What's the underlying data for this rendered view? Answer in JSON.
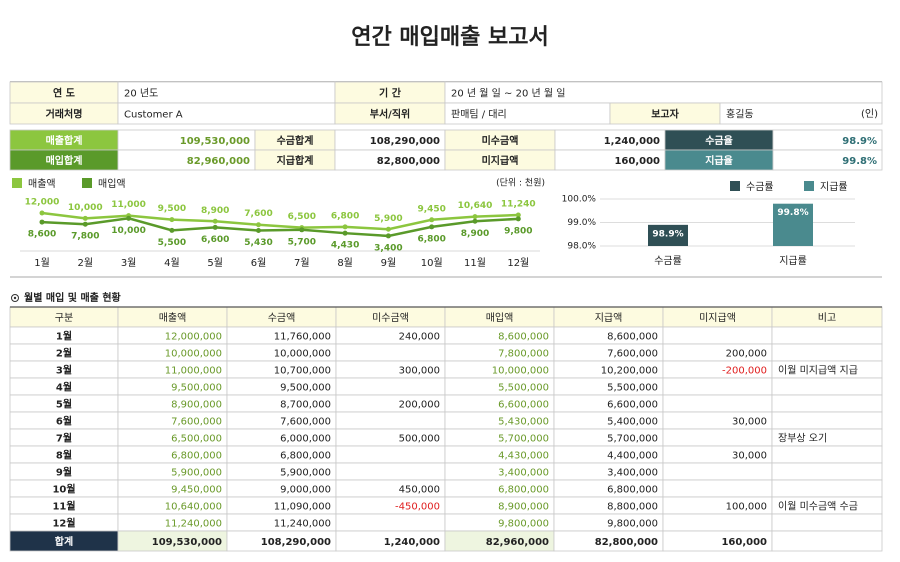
{
  "title": "연간 매입매출 보고서",
  "info": {
    "rows": [
      [
        "연 도",
        "20 년도",
        "기 간",
        "20 년 월 일 ~ 20 년 월 일"
      ],
      [
        "거래처명",
        "Customer A",
        "부서/직위",
        "판매팀 / 대리",
        "보고자",
        "홍길동",
        "(인)"
      ]
    ]
  },
  "summary": {
    "rows": [
      [
        "매출합계",
        "109,530,000",
        "수금합계",
        "108,290,000",
        "미수금액",
        "1,240,000",
        "수금율",
        "98.9%"
      ],
      [
        "매입합계",
        "82,960,000",
        "지급합계",
        "82,800,000",
        "미지급액",
        "160,000",
        "지급율",
        "99.8%"
      ]
    ]
  },
  "line_chart": {
    "type": "line",
    "unit": "(단위 : 천원)",
    "categories": [
      "1월",
      "2월",
      "3월",
      "4월",
      "5월",
      "6월",
      "7월",
      "8월",
      "9월",
      "10월",
      "11월",
      "12월"
    ],
    "series": [
      {
        "name": "매출액",
        "color": "#8cc63f",
        "values": [
          12000,
          10000,
          11000,
          9500,
          8900,
          7600,
          6500,
          6800,
          5900,
          9450,
          10640,
          11240
        ],
        "value_labels": [
          "12,000",
          "10,000",
          "11,000",
          "9,500",
          "8,900",
          "7,600",
          "6,500",
          "6,800",
          "5,900",
          "9,450",
          "10,640",
          "11,240"
        ]
      },
      {
        "name": "매입액",
        "color": "#5a9a2a",
        "values": [
          8600,
          7800,
          10000,
          5500,
          6600,
          5430,
          5700,
          4430,
          3400,
          6800,
          8900,
          9800
        ],
        "value_labels": [
          "8,600",
          "7,800",
          "10,000",
          "5,500",
          "6,600",
          "5,430",
          "5,700",
          "4,430",
          "3,400",
          "6,800",
          "8,900",
          "9,800"
        ]
      }
    ]
  },
  "bar_chart": {
    "type": "bar",
    "categories": [
      "수금률",
      "지급률"
    ],
    "values": [
      98.9,
      99.8
    ],
    "value_labels": [
      "98.9%",
      "99.8%"
    ],
    "colors": [
      "#2f4f55",
      "#4a8a8e"
    ],
    "ylim": [
      98,
      100
    ],
    "yticks": [
      {
        "value": 98,
        "label": "98.0%"
      },
      {
        "value": 99,
        "label": "99.0%"
      },
      {
        "value": 100,
        "label": "100.0%"
      }
    ]
  },
  "section_title": "월별 매입 및 매출 현황",
  "table": {
    "header": [
      "구분",
      "매출액",
      "수금액",
      "미수금액",
      "매입액",
      "지급액",
      "미지급액",
      "비고"
    ],
    "rows": [
      [
        "1월",
        "12,000,000",
        "11,760,000",
        "240,000",
        "8,600,000",
        "8,600,000",
        null,
        null
      ],
      [
        "2월",
        "10,000,000",
        "10,000,000",
        null,
        "7,800,000",
        "7,600,000",
        "200,000",
        null
      ],
      [
        "3월",
        "11,000,000",
        "10,700,000",
        "300,000",
        "10,000,000",
        "10,200,000",
        "-200,000",
        "이월 미지급액 지급"
      ],
      [
        "4월",
        "9,500,000",
        "9,500,000",
        null,
        "5,500,000",
        "5,500,000",
        null,
        null
      ],
      [
        "5월",
        "8,900,000",
        "8,700,000",
        "200,000",
        "6,600,000",
        "6,600,000",
        null,
        null
      ],
      [
        "6월",
        "7,600,000",
        "7,600,000",
        null,
        "5,430,000",
        "5,400,000",
        "30,000",
        null
      ],
      [
        "7월",
        "6,500,000",
        "6,000,000",
        "500,000",
        "5,700,000",
        "5,700,000",
        null,
        "장부상 오기"
      ],
      [
        "8월",
        "6,800,000",
        "6,800,000",
        null,
        "4,430,000",
        "4,400,000",
        "30,000",
        null
      ],
      [
        "9월",
        "5,900,000",
        "5,900,000",
        null,
        "3,400,000",
        "3,400,000",
        null,
        null
      ],
      [
        "10월",
        "9,450,000",
        "9,000,000",
        "450,000",
        "6,800,000",
        "6,800,000",
        null,
        null
      ],
      [
        "11월",
        "10,640,000",
        "11,090,000",
        "-450,000",
        "8,900,000",
        "8,800,000",
        "100,000",
        "이월 미수금액 수금"
      ],
      [
        "12월",
        "11,240,000",
        "11,240,000",
        null,
        "9,800,000",
        "9,800,000",
        null,
        null
      ]
    ],
    "total": [
      "합계",
      "109,530,000",
      "108,290,000",
      "1,240,000",
      "82,960,000",
      "82,800,000",
      "160,000",
      null
    ]
  }
}
